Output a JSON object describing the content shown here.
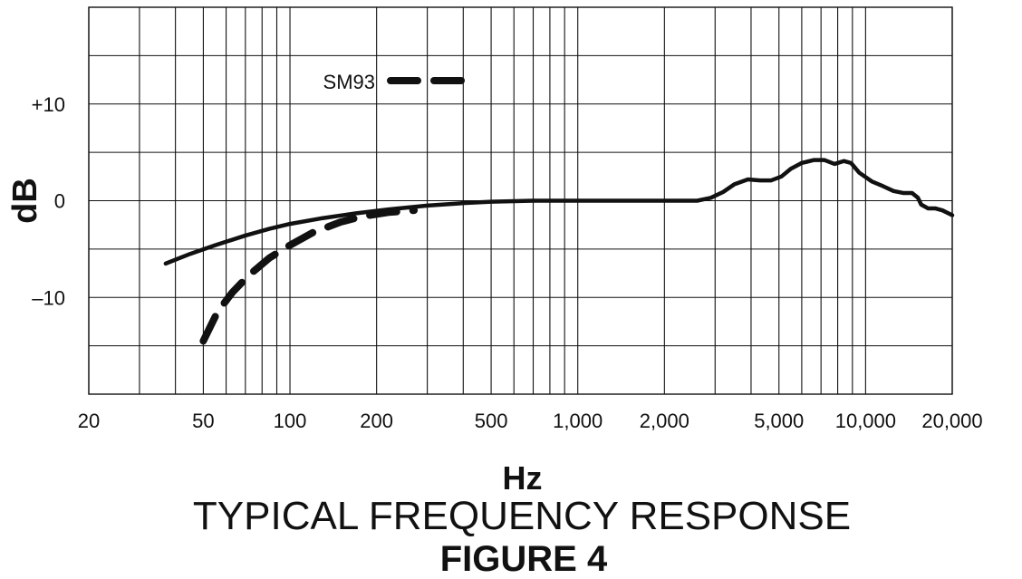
{
  "chart_data": {
    "type": "line",
    "title": "TYPICAL FREQUENCY RESPONSE",
    "subtitle": "FIGURE 4",
    "xlabel": "Hz",
    "ylabel": "dB",
    "x_scale": "log",
    "xlim": [
      20,
      20000
    ],
    "ylim": [
      -20,
      20
    ],
    "grid": true,
    "x_tick_labels": [
      {
        "value": 20,
        "label": "20"
      },
      {
        "value": 50,
        "label": "50"
      },
      {
        "value": 100,
        "label": "100"
      },
      {
        "value": 200,
        "label": "200"
      },
      {
        "value": 500,
        "label": "500"
      },
      {
        "value": 1000,
        "label": "1,000"
      },
      {
        "value": 2000,
        "label": "2,000"
      },
      {
        "value": 5000,
        "label": "5,000"
      },
      {
        "value": 10000,
        "label": "10,000"
      },
      {
        "value": 20000,
        "label": "20,000"
      }
    ],
    "y_tick_labels": [
      {
        "value": 10,
        "label": "+10"
      },
      {
        "value": 0,
        "label": "0"
      },
      {
        "value": -10,
        "label": "–10"
      }
    ],
    "series": [
      {
        "name": "",
        "style": "solid",
        "points": [
          [
            37,
            -6.5
          ],
          [
            45,
            -5.5
          ],
          [
            55,
            -4.6
          ],
          [
            70,
            -3.6
          ],
          [
            85,
            -2.9
          ],
          [
            100,
            -2.4
          ],
          [
            130,
            -1.8
          ],
          [
            170,
            -1.3
          ],
          [
            220,
            -0.9
          ],
          [
            300,
            -0.5
          ],
          [
            400,
            -0.25
          ],
          [
            500,
            -0.1
          ],
          [
            700,
            0
          ],
          [
            1000,
            0
          ],
          [
            1500,
            0
          ],
          [
            2000,
            0
          ],
          [
            2600,
            0
          ],
          [
            2900,
            0.3
          ],
          [
            3200,
            0.9
          ],
          [
            3500,
            1.7
          ],
          [
            3900,
            2.2
          ],
          [
            4300,
            2.1
          ],
          [
            4700,
            2.1
          ],
          [
            5100,
            2.5
          ],
          [
            5500,
            3.3
          ],
          [
            6000,
            3.9
          ],
          [
            6600,
            4.2
          ],
          [
            7200,
            4.2
          ],
          [
            7800,
            3.8
          ],
          [
            8400,
            4.1
          ],
          [
            8900,
            3.9
          ],
          [
            9500,
            2.9
          ],
          [
            10500,
            2.0
          ],
          [
            11500,
            1.5
          ],
          [
            12500,
            1.0
          ],
          [
            13500,
            0.8
          ],
          [
            14500,
            0.8
          ],
          [
            15200,
            0.3
          ],
          [
            15600,
            -0.4
          ],
          [
            16500,
            -0.8
          ],
          [
            17500,
            -0.8
          ],
          [
            18500,
            -1.0
          ],
          [
            20000,
            -1.5
          ]
        ]
      },
      {
        "name": "SM93",
        "style": "dashed",
        "points": [
          [
            50,
            -14.5
          ],
          [
            56,
            -11.5
          ],
          [
            63,
            -9.5
          ],
          [
            72,
            -7.7
          ],
          [
            85,
            -5.9
          ],
          [
            100,
            -4.6
          ],
          [
            120,
            -3.3
          ],
          [
            150,
            -2.2
          ],
          [
            180,
            -1.6
          ],
          [
            220,
            -1.2
          ],
          [
            270,
            -1.0
          ]
        ]
      }
    ]
  }
}
